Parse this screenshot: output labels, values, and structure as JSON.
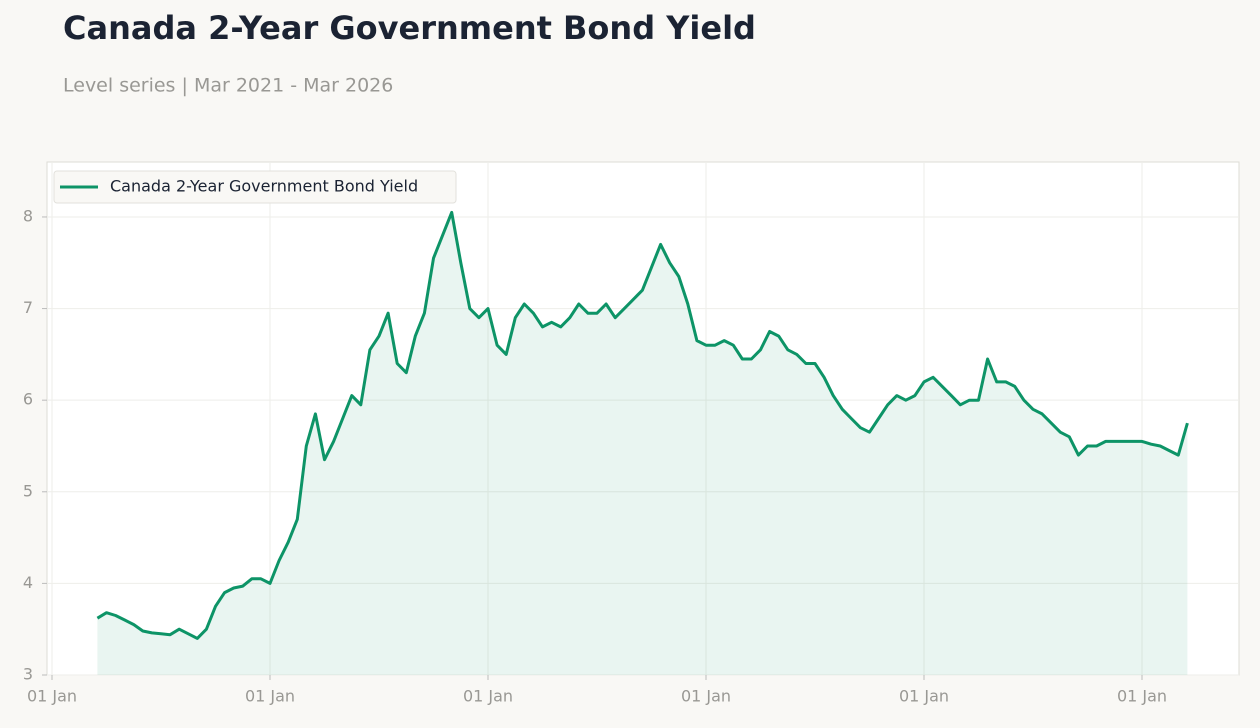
{
  "chart_data": {
    "type": "line",
    "title": "Canada 2-Year Government Bond Yield",
    "subtitle": "Level series | Mar 2021 - Mar 2026",
    "categories": [
      "01 Jan",
      null,
      null,
      null,
      null,
      null,
      null,
      null,
      null,
      null,
      null,
      null,
      null,
      null,
      null,
      null,
      null,
      null,
      null,
      null,
      null,
      null,
      null,
      null,
      "01 Jan",
      null,
      null,
      null,
      null,
      null,
      null,
      null,
      null,
      null,
      null,
      null,
      null,
      null,
      null,
      null,
      null,
      null,
      null,
      null,
      null,
      null,
      null,
      null,
      "01 Jan",
      null,
      null,
      null,
      null,
      null,
      null,
      null,
      null,
      null,
      null,
      null,
      null,
      null,
      null,
      null,
      null,
      null,
      null,
      null,
      null,
      null,
      null,
      null,
      "01 Jan",
      null,
      null,
      null,
      null,
      null,
      null,
      null,
      null,
      null,
      null,
      null,
      null,
      null,
      null,
      null,
      null,
      null,
      null,
      null,
      null,
      null,
      null,
      null,
      "01 Jan",
      null,
      null,
      null,
      null,
      null,
      null,
      null,
      null,
      null,
      null,
      null,
      null,
      null,
      null,
      null,
      null,
      null,
      null,
      null,
      null,
      null,
      null,
      null,
      "01 Jan",
      null,
      null,
      null,
      null,
      null
    ],
    "series": [
      {
        "name": "Canada 2-Year Government Bond Yield",
        "color": "#0d9467",
        "values": [
          null,
          null,
          null,
          null,
          null,
          3.62,
          3.68,
          3.65,
          3.6,
          3.55,
          3.48,
          3.46,
          3.45,
          3.44,
          3.5,
          3.45,
          3.4,
          3.5,
          3.75,
          3.9,
          3.95,
          3.97,
          4.05,
          4.05,
          4.0,
          4.25,
          4.45,
          4.7,
          5.5,
          5.85,
          5.35,
          5.55,
          5.8,
          6.05,
          5.95,
          6.55,
          6.7,
          6.95,
          6.4,
          6.3,
          6.7,
          6.95,
          7.55,
          7.8,
          8.05,
          7.5,
          7.0,
          6.9,
          7.0,
          6.6,
          6.5,
          6.9,
          7.05,
          6.95,
          6.8,
          6.85,
          6.8,
          6.9,
          7.05,
          6.95,
          6.95,
          7.05,
          6.9,
          7.0,
          7.1,
          7.2,
          7.45,
          7.7,
          7.5,
          7.35,
          7.05,
          6.65,
          6.6,
          6.6,
          6.65,
          6.6,
          6.45,
          6.45,
          6.55,
          6.75,
          6.7,
          6.55,
          6.5,
          6.4,
          6.4,
          6.25,
          6.05,
          5.9,
          5.8,
          5.7,
          5.65,
          5.8,
          5.95,
          6.05,
          6.0,
          6.05,
          6.2,
          6.25,
          6.15,
          6.05,
          5.95,
          6.0,
          6.0,
          6.45,
          6.2,
          6.2,
          6.15,
          6.0,
          5.9,
          5.85,
          5.75,
          5.65,
          5.6,
          5.4,
          5.5,
          5.5,
          5.55,
          5.55,
          5.55,
          5.55,
          5.55,
          5.52,
          5.5,
          5.45,
          5.4,
          5.75
        ]
      }
    ],
    "ylim": [
      3,
      8.6
    ],
    "yticks": [
      3,
      4,
      5,
      6,
      7,
      8
    ],
    "grid": true,
    "area_fill": true,
    "legend": "upper left"
  }
}
